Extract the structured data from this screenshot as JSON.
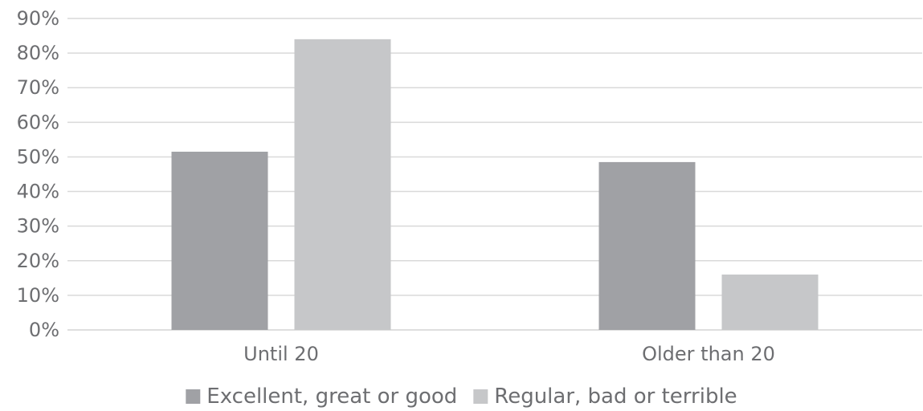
{
  "chart_data": {
    "type": "bar",
    "title": "",
    "xlabel": "",
    "ylabel": "",
    "categories": [
      "Until 20",
      "Older than 20"
    ],
    "series": [
      {
        "name": "Excellent, great or good",
        "values": [
          51.5,
          48.5
        ],
        "color": "#a0a1a5"
      },
      {
        "name": "Regular, bad or terrible",
        "values": [
          84,
          16
        ],
        "color": "#c6c7c9"
      }
    ],
    "ylim": [
      0,
      90
    ],
    "yticks": [
      "0%",
      "10%",
      "20%",
      "30%",
      "40%",
      "50%",
      "60%",
      "70%",
      "80%",
      "90%"
    ],
    "ytick_values": [
      0,
      10,
      20,
      30,
      40,
      50,
      60,
      70,
      80,
      90
    ],
    "grid": true,
    "legend_position": "bottom",
    "colors": {
      "gridline": "#d9d9d9",
      "text": "#6d6e71"
    }
  }
}
